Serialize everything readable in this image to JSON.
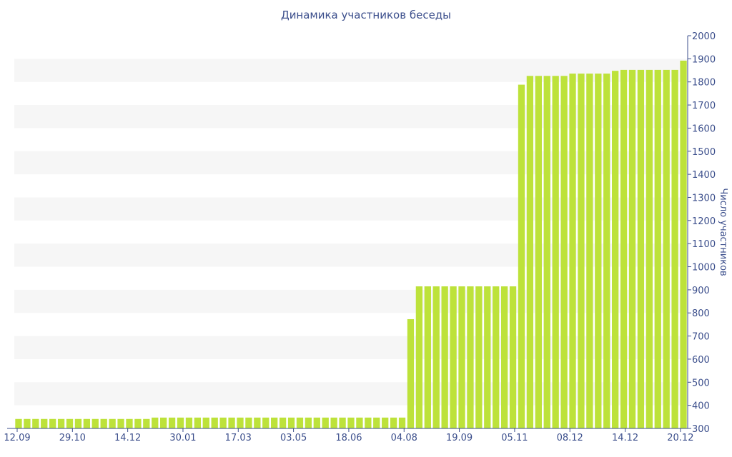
{
  "chart_data": {
    "type": "bar",
    "title": "Динамика участников беседы",
    "ylabel": "Число участников",
    "xlabel": "",
    "ylim": [
      300,
      2000
    ],
    "yticks": [
      300,
      400,
      500,
      600,
      700,
      800,
      900,
      1000,
      1100,
      1200,
      1300,
      1400,
      1500,
      1600,
      1700,
      1800,
      1900,
      2000
    ],
    "x_tick_labels": [
      "12.09",
      "29.10",
      "14.12",
      "30.01",
      "17.03",
      "03.05",
      "18.06",
      "04.08",
      "19.09",
      "05.11",
      "08.12",
      "14.12",
      "20.12"
    ],
    "grid": "horizontal alternating bands",
    "y_axis_position": "right",
    "colors": {
      "bar": "#bde23a",
      "band": "#f6f6f6",
      "axis": "#3c4f8c",
      "text": "#3c4f8c"
    },
    "values": [
      341,
      341,
      341,
      341,
      341,
      341,
      341,
      341,
      341,
      341,
      341,
      341,
      341,
      341,
      341,
      341,
      347,
      347,
      347,
      347,
      347,
      347,
      347,
      347,
      347,
      347,
      347,
      347,
      347,
      347,
      347,
      347,
      347,
      347,
      347,
      347,
      347,
      347,
      347,
      347,
      347,
      347,
      347,
      347,
      347,
      347,
      773,
      915,
      915,
      915,
      915,
      915,
      915,
      915,
      915,
      915,
      915,
      915,
      915,
      1788,
      1826,
      1826,
      1826,
      1826,
      1826,
      1836,
      1836,
      1836,
      1836,
      1836,
      1848,
      1852,
      1852,
      1852,
      1852,
      1852,
      1852,
      1852,
      1892
    ]
  }
}
